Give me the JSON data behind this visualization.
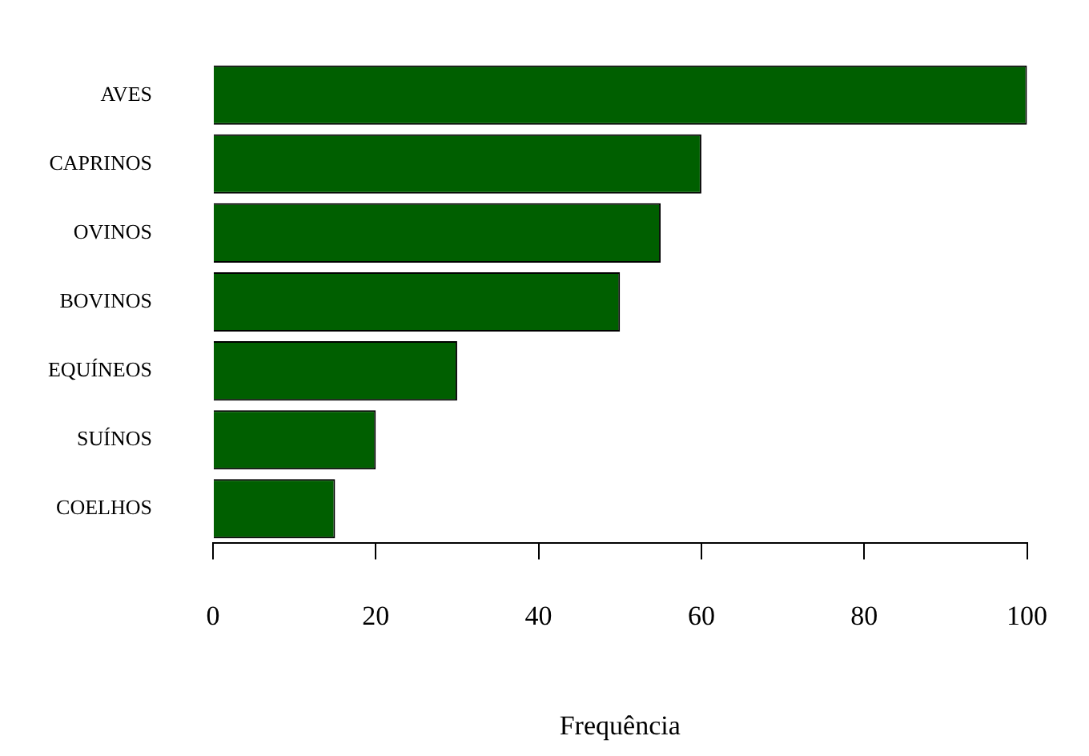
{
  "chart_data": {
    "type": "bar",
    "orientation": "horizontal",
    "xlabel": "Frequência",
    "categories": [
      "AVES",
      "CAPRINOS",
      "OVINOS",
      "BOVINOS",
      "EQUÍNEOS",
      "SUÍNOS",
      "COELHOS"
    ],
    "values": [
      100,
      60,
      55,
      50,
      30,
      20,
      15
    ],
    "color": "#005f00",
    "xlim": [
      0,
      100
    ],
    "xticks": [
      0,
      20,
      40,
      60,
      80,
      100
    ]
  }
}
